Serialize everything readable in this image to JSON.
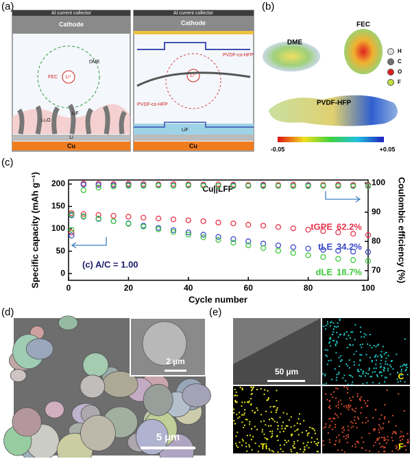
{
  "panels": {
    "a": {
      "label": "(a)",
      "collector": "Al current collector",
      "cathode": "Cathode",
      "collector_right": "Al current collector",
      "cathode_right": "Cathode",
      "li_ion": "Li⁺",
      "li_ion_right": "Li⁺",
      "fec": "FEC",
      "dme": "DME",
      "lif": "LiF",
      "li2o": "Li₂O",
      "pvdf": "PVDF-co-HFP",
      "pvdf_right": "PVDF-co-HFP",
      "lif_right": "LiF",
      "cu": "Cu",
      "cu_right": "Cu",
      "li": "Li"
    },
    "b": {
      "label": "(b)",
      "dme": "DME",
      "fec": "FEC",
      "polymer": "PVDF-HFP",
      "atoms": [
        "H",
        "C",
        "O",
        "F"
      ],
      "scale_min": "-0.05",
      "scale_max": "+0.05"
    },
    "d": {
      "label": "(d)",
      "inset_scale": "2 µm",
      "scale": "5 µm"
    },
    "e": {
      "label": "(e)",
      "scale": "50 µm",
      "maps": [
        "C",
        "Ti",
        "F"
      ]
    }
  },
  "chart_data": {
    "type": "scatter",
    "panel_label": "(c)",
    "title": "Cu||LFP",
    "annotation": "(c) A/C = 1.00",
    "xlabel": "Cycle number",
    "ylabel": "Specific capacity (mAh g⁻¹)",
    "y2label": "Coulombic efficiency (%)",
    "x": [
      1,
      5,
      10,
      15,
      20,
      25,
      30,
      35,
      40,
      45,
      50,
      55,
      60,
      65,
      70,
      75,
      80,
      85,
      90,
      95,
      100
    ],
    "xlim": [
      0,
      100
    ],
    "xticks": [
      0,
      20,
      40,
      60,
      80,
      100
    ],
    "ylim": [
      -15,
      209
    ],
    "yticks": [
      0,
      50,
      100,
      150,
      200
    ],
    "y2lim": [
      66.7,
      101
    ],
    "y2ticks": [
      70,
      80,
      90,
      100
    ],
    "series": [
      {
        "name": "tGPE",
        "label": "62.2%",
        "color": "#e8334a",
        "values": [
          135,
          133,
          131,
          129,
          127,
          125,
          123,
          121,
          119,
          117,
          114,
          112,
          109,
          107,
          104,
          101,
          98,
          95,
          92,
          89,
          86
        ]
      },
      {
        "name": "tLE",
        "label": "34.2%",
        "color": "#3a47c8",
        "values": [
          130,
          127,
          122,
          117,
          112,
          107,
          102,
          97,
          92,
          87,
          82,
          77,
          72,
          67,
          63,
          59,
          56,
          53,
          51,
          49,
          48
        ]
      },
      {
        "name": "dLE",
        "label": "18.7%",
        "color": "#3cc83c",
        "values": [
          132,
          128,
          123,
          117,
          111,
          105,
          99,
          93,
          87,
          81,
          75,
          69,
          63,
          57,
          51,
          46,
          41,
          37,
          33,
          30,
          28
        ]
      },
      {
        "color": "#e8334a",
        "axis": "y2",
        "values": [
          83,
          99.8,
          99.7,
          99.6,
          99.7,
          99.6,
          99.5,
          99.6,
          99.5,
          99.4,
          99.5,
          99.4,
          99.3,
          99.4,
          99.3,
          99.4,
          99.3,
          99.3,
          99.4,
          99.3,
          99.3
        ]
      },
      {
        "color": "#3a47c8",
        "axis": "y2",
        "values": [
          82,
          99.4,
          99.3,
          99.2,
          99.3,
          99.2,
          99.2,
          99.1,
          99.2,
          99.1,
          99.0,
          99.1,
          99.0,
          99.1,
          99.0,
          99.0,
          99.1,
          99.0,
          99.0,
          99.0,
          99.0
        ]
      },
      {
        "color": "#3cc83c",
        "axis": "y2",
        "values": [
          84,
          97.5,
          98.4,
          98.8,
          99.0,
          99.0,
          99.1,
          99.0,
          99.1,
          99.0,
          99.0,
          98.9,
          99.0,
          98.9,
          99.0,
          98.9,
          98.9,
          99.0,
          98.9,
          98.9,
          98.9
        ]
      }
    ]
  }
}
